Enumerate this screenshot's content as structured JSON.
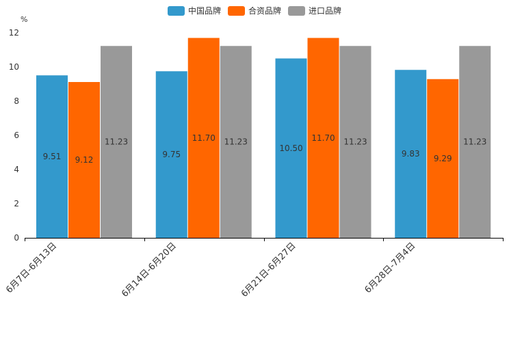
{
  "chart_data": {
    "type": "bar",
    "unit": "%",
    "categories": [
      "6月7日-6月13日",
      "6月14日-6月20日",
      "6月21日-6月27日",
      "6月28日-7月4日"
    ],
    "series": [
      {
        "name": "中国品牌",
        "color": "#3399CC",
        "values": [
          9.51,
          9.75,
          10.5,
          9.83
        ],
        "labels": [
          "9.51",
          "9.75",
          "10.50",
          "9.83"
        ]
      },
      {
        "name": "合资品牌",
        "color": "#FF6600",
        "values": [
          9.12,
          11.7,
          11.7,
          9.29
        ],
        "labels": [
          "9.12",
          "11.70",
          "11.70",
          "9.29"
        ]
      },
      {
        "name": "进口品牌",
        "color": "#999999",
        "values": [
          11.23,
          11.23,
          11.23,
          11.23
        ],
        "labels": [
          "11.23",
          "11.23",
          "11.23",
          "11.23"
        ]
      }
    ],
    "ylim": [
      0,
      12
    ],
    "yticks": [
      "0",
      "2",
      "4",
      "6",
      "8",
      "10",
      "12"
    ],
    "legend_position": "top-center"
  }
}
